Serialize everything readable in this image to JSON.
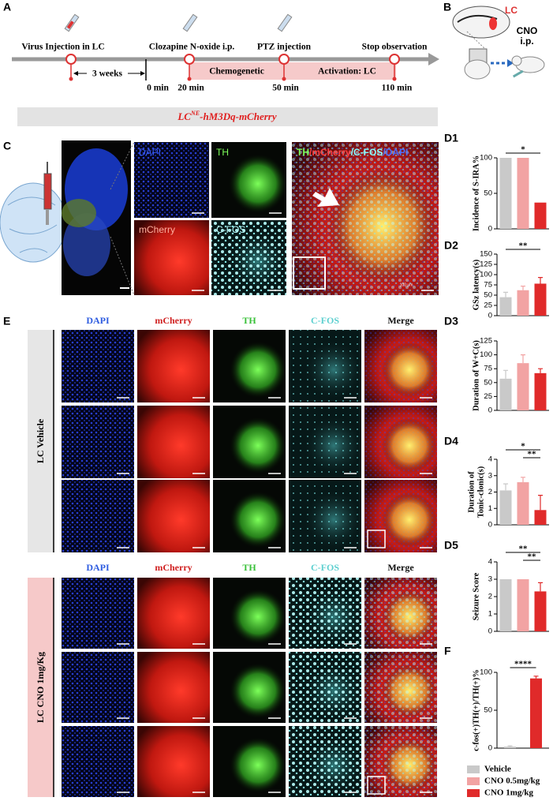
{
  "panel_a": {
    "label": "A",
    "events": [
      "Virus Injection in LC",
      "Clozapine N-oxide i.p.",
      "PTZ injection",
      "Stop observation"
    ],
    "interval": "3 weeks",
    "times": [
      "0 min",
      "20 min",
      "50 min",
      "110 min"
    ],
    "phases": [
      "Chemogenetic",
      "Activation: LC"
    ]
  },
  "panel_b": {
    "label": "B",
    "region": "LC",
    "drug": "CNO",
    "route": "i.p."
  },
  "banner": {
    "prefix": "LC",
    "superscript": "NE",
    "suffix": "-hM3Dq-mCherry"
  },
  "panel_c": {
    "label": "C",
    "channels": [
      "DAPI",
      "TH",
      "mCherry",
      "C-FOS"
    ],
    "merge": [
      "TH",
      "/mCherry",
      "/C-FOS",
      "/DAPI"
    ],
    "scale": "100 μm"
  },
  "panel_e": {
    "label": "E",
    "columns": [
      "DAPI",
      "mCherry",
      "TH",
      "C-FOS",
      "Merge"
    ],
    "groups": [
      "LC Vehicle",
      "LC CNO 1mg/Kg"
    ]
  },
  "chart_data": [
    {
      "type": "bar",
      "label": "D1",
      "ylabel": [
        "Incidence of S-IRA%"
      ],
      "ylim": [
        0,
        100
      ],
      "yticks": [
        0,
        50,
        100
      ],
      "values": [
        100,
        100,
        37
      ],
      "errors": [
        0,
        0,
        0
      ],
      "colors": [
        "#c9c9c9",
        "#f2a3a3",
        "#e02a2a"
      ],
      "significance": [
        {
          "text": "*",
          "pair": [
            0,
            2
          ]
        }
      ]
    },
    {
      "type": "bar",
      "label": "D2",
      "ylabel": [
        "GSz latency(s)"
      ],
      "ylim": [
        0,
        150
      ],
      "yticks": [
        0,
        25,
        50,
        75,
        100,
        125,
        150
      ],
      "values": [
        45,
        62,
        78
      ],
      "errors": [
        12,
        10,
        15
      ],
      "colors": [
        "#c9c9c9",
        "#f2a3a3",
        "#e02a2a"
      ],
      "significance": [
        {
          "text": "**",
          "pair": [
            0,
            2
          ]
        }
      ]
    },
    {
      "type": "bar",
      "label": "D3",
      "ylabel": [
        "Duration of W+C(s)"
      ],
      "ylim": [
        0,
        125
      ],
      "yticks": [
        0,
        25,
        50,
        75,
        100,
        125
      ],
      "values": [
        57,
        85,
        67
      ],
      "errors": [
        15,
        15,
        8
      ],
      "colors": [
        "#c9c9c9",
        "#f2a3a3",
        "#e02a2a"
      ],
      "significance": []
    },
    {
      "type": "bar",
      "label": "D4",
      "ylabel": [
        "Duration of",
        "Tonic-clonic(s)"
      ],
      "ylim": [
        0,
        4
      ],
      "yticks": [
        0,
        1,
        2,
        3,
        4
      ],
      "values": [
        2.1,
        2.6,
        0.9
      ],
      "errors": [
        0.4,
        0.3,
        0.9
      ],
      "colors": [
        "#c9c9c9",
        "#f2a3a3",
        "#e02a2a"
      ],
      "significance": [
        {
          "text": "*",
          "pair": [
            0,
            2
          ]
        },
        {
          "text": "**",
          "pair": [
            1,
            2
          ]
        }
      ]
    },
    {
      "type": "bar",
      "label": "D5",
      "ylabel": [
        "Seizure Score"
      ],
      "ylim": [
        0,
        4
      ],
      "yticks": [
        0,
        1,
        2,
        3,
        4
      ],
      "values": [
        3,
        3,
        2.3
      ],
      "errors": [
        0,
        0,
        0.5
      ],
      "colors": [
        "#c9c9c9",
        "#f2a3a3",
        "#e02a2a"
      ],
      "significance": [
        {
          "text": "**",
          "pair": [
            0,
            2
          ]
        },
        {
          "text": "**",
          "pair": [
            1,
            2
          ]
        }
      ]
    },
    {
      "type": "bar",
      "label": "F",
      "ylabel": [
        "c-fos(+)TH(+)/TH(+)%"
      ],
      "ylim": [
        0,
        100
      ],
      "yticks": [
        0,
        50,
        100
      ],
      "values": [
        2,
        92
      ],
      "errors": [
        1,
        3
      ],
      "colors": [
        "#c9c9c9",
        "#e02a2a"
      ],
      "significance": [
        {
          "text": "****",
          "pair": [
            0,
            1
          ]
        }
      ]
    }
  ],
  "legend": [
    {
      "name": "Vehicle",
      "color": "#c9c9c9"
    },
    {
      "name": "CNO 0.5mg/kg",
      "color": "#f2a3a3"
    },
    {
      "name": "CNO 1mg/kg",
      "color": "#e02a2a"
    }
  ]
}
